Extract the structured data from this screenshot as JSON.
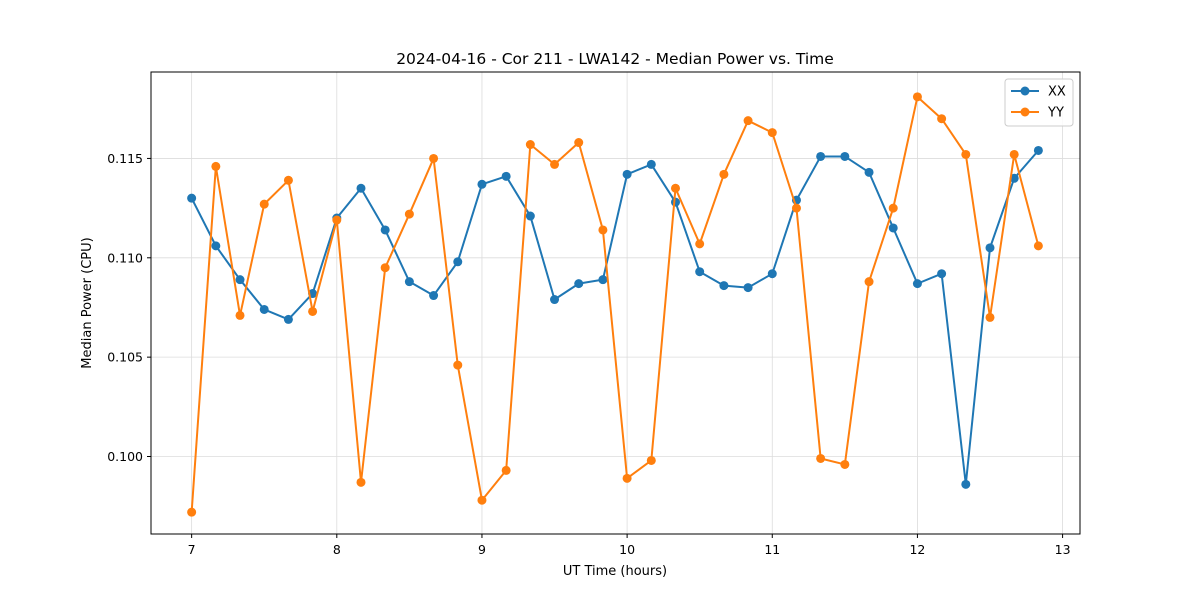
{
  "chart_data": {
    "type": "line",
    "title": "2024-04-16 - Cor 211 - LWA142 - Median Power vs. Time",
    "xlabel": "UT Time (hours)",
    "ylabel": "Median Power (CPU)",
    "xlim": [
      6.72,
      13.12
    ],
    "ylim": [
      0.0961,
      0.11935
    ],
    "xticks": [
      7,
      8,
      9,
      10,
      11,
      12,
      13
    ],
    "xtick_labels": [
      "7",
      "8",
      "9",
      "10",
      "11",
      "12",
      "13"
    ],
    "yticks": [
      0.1,
      0.105,
      0.11,
      0.115
    ],
    "ytick_labels": [
      "0.100",
      "0.105",
      "0.110",
      "0.115"
    ],
    "grid": true,
    "legend_position": "top-right",
    "x": [
      7.0,
      7.1667,
      7.3333,
      7.5,
      7.6667,
      7.8333,
      8.0,
      8.1667,
      8.3333,
      8.5,
      8.6667,
      8.8333,
      9.0,
      9.1667,
      9.3333,
      9.5,
      9.6667,
      9.8333,
      10.0,
      10.1667,
      10.3333,
      10.5,
      10.6667,
      10.8333,
      11.0,
      11.1667,
      11.3333,
      11.5,
      11.6667,
      11.8333,
      12.0,
      12.1667,
      12.3333,
      12.5,
      12.6667,
      12.8333
    ],
    "series": [
      {
        "name": "XX",
        "color": "#1f77b4",
        "values": [
          0.113,
          0.1106,
          0.1089,
          0.1074,
          0.1069,
          0.1082,
          0.112,
          0.1135,
          0.1114,
          0.1088,
          0.1081,
          0.1098,
          0.1137,
          0.1141,
          0.1121,
          0.1079,
          0.1087,
          0.1089,
          0.1142,
          0.1147,
          0.1128,
          0.1093,
          0.1086,
          0.1085,
          0.1092,
          0.1129,
          0.1151,
          0.1151,
          0.1143,
          0.1115,
          0.1087,
          0.1092,
          0.0986,
          0.1105,
          0.114,
          0.1154
        ]
      },
      {
        "name": "YY",
        "color": "#ff7f0e",
        "values": [
          0.0972,
          0.1146,
          0.1071,
          0.1127,
          0.1139,
          0.1073,
          0.1119,
          0.0987,
          0.1095,
          0.1122,
          0.115,
          0.1046,
          0.0978,
          0.0993,
          0.1157,
          0.1147,
          0.1158,
          0.1114,
          0.0989,
          0.0998,
          0.1135,
          0.1107,
          0.1142,
          0.1169,
          0.1163,
          0.1125,
          0.0999,
          0.0996,
          0.1088,
          0.1125,
          0.1181,
          0.117,
          0.1152,
          0.107,
          0.1152,
          0.1106
        ]
      }
    ]
  }
}
